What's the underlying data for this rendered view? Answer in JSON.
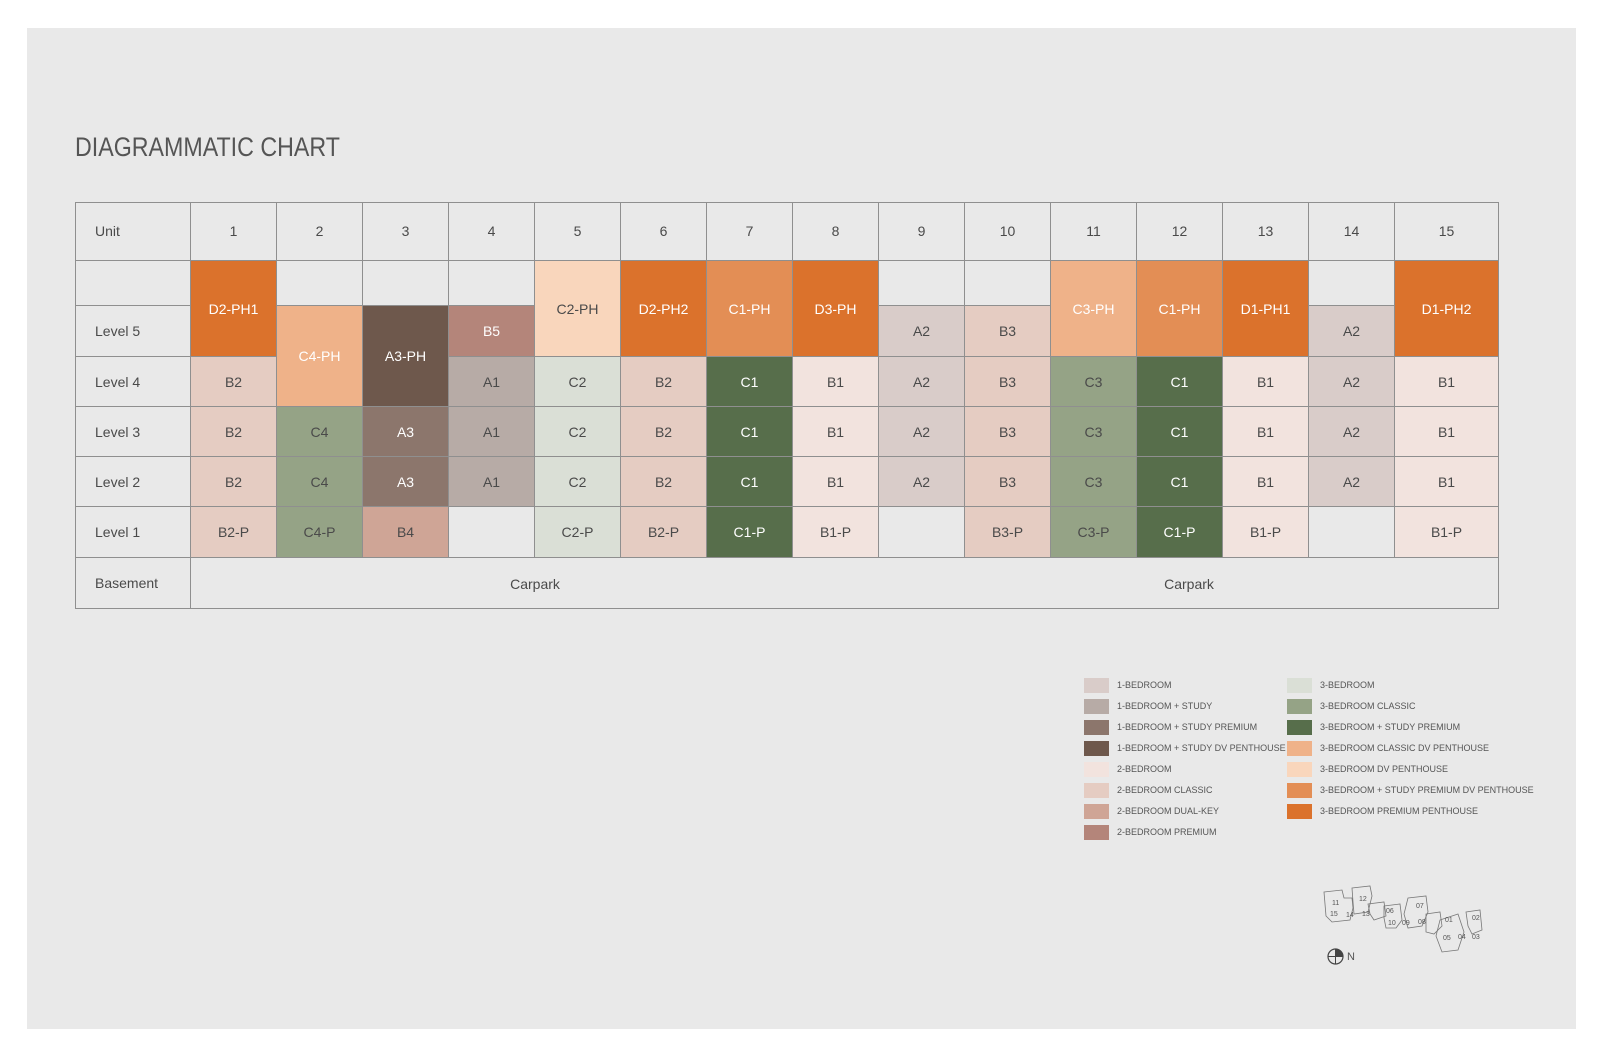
{
  "title": "DIAGRAMMATIC CHART",
  "colors": {
    "1-bedroom": "#d9ccc9",
    "1-bedroom-study": "#b7aba6",
    "1-bedroom-study-premium": "#8c766c",
    "1-bedroom-study-dv-penthouse": "#6e584c",
    "2-bedroom": "#f2e3de",
    "2-bedroom-classic": "#e5ccc2",
    "2-bedroom-dual-key": "#cfa596",
    "2-bedroom-premium": "#b4857a",
    "3-bedroom": "#dadfd6",
    "3-bedroom-classic": "#95a386",
    "3-bedroom-study-premium": "#576e4b",
    "3-bedroom-classic-dv-penthouse": "#efb289",
    "3-bedroom-dv-penthouse": "#f9d6bc",
    "3-bedroom-study-premium-dv-penthouse": "#e38e55",
    "3-bedroom-premium-penthouse": "#db722c",
    "empty": "#e9e9e9"
  },
  "table": {
    "unit_label": "Unit",
    "units": [
      "1",
      "2",
      "3",
      "4",
      "5",
      "6",
      "7",
      "8",
      "9",
      "10",
      "11",
      "12",
      "13",
      "14",
      "15"
    ],
    "row_labels": [
      "",
      "Level 5",
      "Level 4",
      "Level 3",
      "Level 2",
      "Level 1"
    ],
    "basement_label": "Basement",
    "carpark_labels": [
      "Carpark",
      "Carpark"
    ],
    "columns": [
      {
        "cells": [
          {
            "t": "D2-PH1",
            "c": "3-bedroom-premium-penthouse",
            "span": [
              0,
              1
            ],
            "light": true
          },
          {
            "t": "B2",
            "c": "2-bedroom-classic",
            "span": [
              2,
              2
            ]
          },
          {
            "t": "B2",
            "c": "2-bedroom-classic",
            "span": [
              3,
              3
            ]
          },
          {
            "t": "B2",
            "c": "2-bedroom-classic",
            "span": [
              4,
              4
            ]
          },
          {
            "t": "B2-P",
            "c": "2-bedroom-classic",
            "span": [
              5,
              5
            ]
          }
        ]
      },
      {
        "cells": [
          {
            "t": "",
            "c": "empty",
            "span": [
              0,
              0
            ]
          },
          {
            "t": "C4-PH",
            "c": "3-bedroom-classic-dv-penthouse",
            "span": [
              1,
              2
            ],
            "light": true
          },
          {
            "t": "C4",
            "c": "3-bedroom-classic",
            "span": [
              3,
              3
            ]
          },
          {
            "t": "C4",
            "c": "3-bedroom-classic",
            "span": [
              4,
              4
            ]
          },
          {
            "t": "C4-P",
            "c": "3-bedroom-classic",
            "span": [
              5,
              5
            ]
          }
        ]
      },
      {
        "cells": [
          {
            "t": "",
            "c": "empty",
            "span": [
              0,
              0
            ]
          },
          {
            "t": "A3-PH",
            "c": "1-bedroom-study-dv-penthouse",
            "span": [
              1,
              2
            ],
            "light": true
          },
          {
            "t": "A3",
            "c": "1-bedroom-study-premium",
            "span": [
              3,
              3
            ],
            "light": true
          },
          {
            "t": "A3",
            "c": "1-bedroom-study-premium",
            "span": [
              4,
              4
            ],
            "light": true
          },
          {
            "t": "B4",
            "c": "2-bedroom-dual-key",
            "span": [
              5,
              5
            ]
          }
        ]
      },
      {
        "cells": [
          {
            "t": "",
            "c": "empty",
            "span": [
              0,
              0
            ]
          },
          {
            "t": "B5",
            "c": "2-bedroom-premium",
            "span": [
              1,
              1
            ],
            "light": true
          },
          {
            "t": "A1",
            "c": "1-bedroom-study",
            "span": [
              2,
              2
            ]
          },
          {
            "t": "A1",
            "c": "1-bedroom-study",
            "span": [
              3,
              3
            ]
          },
          {
            "t": "A1",
            "c": "1-bedroom-study",
            "span": [
              4,
              4
            ]
          },
          {
            "t": "",
            "c": "empty",
            "span": [
              5,
              5
            ]
          }
        ]
      },
      {
        "cells": [
          {
            "t": "C2-PH",
            "c": "3-bedroom-dv-penthouse",
            "span": [
              0,
              1
            ]
          },
          {
            "t": "C2",
            "c": "3-bedroom",
            "span": [
              2,
              2
            ]
          },
          {
            "t": "C2",
            "c": "3-bedroom",
            "span": [
              3,
              3
            ]
          },
          {
            "t": "C2",
            "c": "3-bedroom",
            "span": [
              4,
              4
            ]
          },
          {
            "t": "C2-P",
            "c": "3-bedroom",
            "span": [
              5,
              5
            ]
          }
        ]
      },
      {
        "cells": [
          {
            "t": "D2-PH2",
            "c": "3-bedroom-premium-penthouse",
            "span": [
              0,
              1
            ],
            "light": true
          },
          {
            "t": "B2",
            "c": "2-bedroom-classic",
            "span": [
              2,
              2
            ]
          },
          {
            "t": "B2",
            "c": "2-bedroom-classic",
            "span": [
              3,
              3
            ]
          },
          {
            "t": "B2",
            "c": "2-bedroom-classic",
            "span": [
              4,
              4
            ]
          },
          {
            "t": "B2-P",
            "c": "2-bedroom-classic",
            "span": [
              5,
              5
            ]
          }
        ]
      },
      {
        "cells": [
          {
            "t": "C1-PH",
            "c": "3-bedroom-study-premium-dv-penthouse",
            "span": [
              0,
              1
            ],
            "light": true
          },
          {
            "t": "C1",
            "c": "3-bedroom-study-premium",
            "span": [
              2,
              2
            ],
            "light": true
          },
          {
            "t": "C1",
            "c": "3-bedroom-study-premium",
            "span": [
              3,
              3
            ],
            "light": true
          },
          {
            "t": "C1",
            "c": "3-bedroom-study-premium",
            "span": [
              4,
              4
            ],
            "light": true
          },
          {
            "t": "C1-P",
            "c": "3-bedroom-study-premium",
            "span": [
              5,
              5
            ],
            "light": true
          }
        ]
      },
      {
        "cells": [
          {
            "t": "D3-PH",
            "c": "3-bedroom-premium-penthouse",
            "span": [
              0,
              1
            ],
            "light": true
          },
          {
            "t": "B1",
            "c": "2-bedroom",
            "span": [
              2,
              2
            ]
          },
          {
            "t": "B1",
            "c": "2-bedroom",
            "span": [
              3,
              3
            ]
          },
          {
            "t": "B1",
            "c": "2-bedroom",
            "span": [
              4,
              4
            ]
          },
          {
            "t": "B1-P",
            "c": "2-bedroom",
            "span": [
              5,
              5
            ]
          }
        ]
      },
      {
        "cells": [
          {
            "t": "",
            "c": "empty",
            "span": [
              0,
              0
            ]
          },
          {
            "t": "A2",
            "c": "1-bedroom",
            "span": [
              1,
              1
            ]
          },
          {
            "t": "A2",
            "c": "1-bedroom",
            "span": [
              2,
              2
            ]
          },
          {
            "t": "A2",
            "c": "1-bedroom",
            "span": [
              3,
              3
            ]
          },
          {
            "t": "A2",
            "c": "1-bedroom",
            "span": [
              4,
              4
            ]
          },
          {
            "t": "",
            "c": "empty",
            "span": [
              5,
              5
            ]
          }
        ]
      },
      {
        "cells": [
          {
            "t": "",
            "c": "empty",
            "span": [
              0,
              0
            ]
          },
          {
            "t": "B3",
            "c": "2-bedroom-classic",
            "span": [
              1,
              1
            ]
          },
          {
            "t": "B3",
            "c": "2-bedroom-classic",
            "span": [
              2,
              2
            ]
          },
          {
            "t": "B3",
            "c": "2-bedroom-classic",
            "span": [
              3,
              3
            ]
          },
          {
            "t": "B3",
            "c": "2-bedroom-classic",
            "span": [
              4,
              4
            ]
          },
          {
            "t": "B3-P",
            "c": "2-bedroom-classic",
            "span": [
              5,
              5
            ]
          }
        ]
      },
      {
        "cells": [
          {
            "t": "C3-PH",
            "c": "3-bedroom-classic-dv-penthouse",
            "span": [
              0,
              1
            ],
            "light": true
          },
          {
            "t": "C3",
            "c": "3-bedroom-classic",
            "span": [
              2,
              2
            ]
          },
          {
            "t": "C3",
            "c": "3-bedroom-classic",
            "span": [
              3,
              3
            ]
          },
          {
            "t": "C3",
            "c": "3-bedroom-classic",
            "span": [
              4,
              4
            ]
          },
          {
            "t": "C3-P",
            "c": "3-bedroom-classic",
            "span": [
              5,
              5
            ]
          }
        ]
      },
      {
        "cells": [
          {
            "t": "C1-PH",
            "c": "3-bedroom-study-premium-dv-penthouse",
            "span": [
              0,
              1
            ],
            "light": true
          },
          {
            "t": "C1",
            "c": "3-bedroom-study-premium",
            "span": [
              2,
              2
            ],
            "light": true
          },
          {
            "t": "C1",
            "c": "3-bedroom-study-premium",
            "span": [
              3,
              3
            ],
            "light": true
          },
          {
            "t": "C1",
            "c": "3-bedroom-study-premium",
            "span": [
              4,
              4
            ],
            "light": true
          },
          {
            "t": "C1-P",
            "c": "3-bedroom-study-premium",
            "span": [
              5,
              5
            ],
            "light": true
          }
        ]
      },
      {
        "cells": [
          {
            "t": "D1-PH1",
            "c": "3-bedroom-premium-penthouse",
            "span": [
              0,
              1
            ],
            "light": true
          },
          {
            "t": "B1",
            "c": "2-bedroom",
            "span": [
              2,
              2
            ]
          },
          {
            "t": "B1",
            "c": "2-bedroom",
            "span": [
              3,
              3
            ]
          },
          {
            "t": "B1",
            "c": "2-bedroom",
            "span": [
              4,
              4
            ]
          },
          {
            "t": "B1-P",
            "c": "2-bedroom",
            "span": [
              5,
              5
            ]
          }
        ]
      },
      {
        "cells": [
          {
            "t": "",
            "c": "empty",
            "span": [
              0,
              0
            ]
          },
          {
            "t": "A2",
            "c": "1-bedroom",
            "span": [
              1,
              1
            ]
          },
          {
            "t": "A2",
            "c": "1-bedroom",
            "span": [
              2,
              2
            ]
          },
          {
            "t": "A2",
            "c": "1-bedroom",
            "span": [
              3,
              3
            ]
          },
          {
            "t": "A2",
            "c": "1-bedroom",
            "span": [
              4,
              4
            ]
          },
          {
            "t": "",
            "c": "empty",
            "span": [
              5,
              5
            ]
          }
        ]
      },
      {
        "cells": [
          {
            "t": "D1-PH2",
            "c": "3-bedroom-premium-penthouse",
            "span": [
              0,
              1
            ],
            "light": true
          },
          {
            "t": "B1",
            "c": "2-bedroom",
            "span": [
              2,
              2
            ]
          },
          {
            "t": "B1",
            "c": "2-bedroom",
            "span": [
              3,
              3
            ]
          },
          {
            "t": "B1",
            "c": "2-bedroom",
            "span": [
              4,
              4
            ]
          },
          {
            "t": "B1-P",
            "c": "2-bedroom",
            "span": [
              5,
              5
            ]
          }
        ]
      }
    ]
  },
  "legend": [
    {
      "label": "1-BEDROOM",
      "c": "1-bedroom"
    },
    {
      "label": "1-BEDROOM + STUDY",
      "c": "1-bedroom-study"
    },
    {
      "label": "1-BEDROOM + STUDY PREMIUM",
      "c": "1-bedroom-study-premium"
    },
    {
      "label": "1-BEDROOM + STUDY DV PENTHOUSE",
      "c": "1-bedroom-study-dv-penthouse"
    },
    {
      "label": "2-BEDROOM",
      "c": "2-bedroom"
    },
    {
      "label": "2-BEDROOM CLASSIC",
      "c": "2-bedroom-classic"
    },
    {
      "label": "2-BEDROOM DUAL-KEY",
      "c": "2-bedroom-dual-key"
    },
    {
      "label": "2-BEDROOM PREMIUM",
      "c": "2-bedroom-premium"
    },
    {
      "label": "3-BEDROOM",
      "c": "3-bedroom"
    },
    {
      "label": "3-BEDROOM CLASSIC",
      "c": "3-bedroom-classic"
    },
    {
      "label": "3-BEDROOM + STUDY PREMIUM",
      "c": "3-bedroom-study-premium"
    },
    {
      "label": "3-BEDROOM CLASSIC DV PENTHOUSE",
      "c": "3-bedroom-classic-dv-penthouse"
    },
    {
      "label": "3-BEDROOM DV PENTHOUSE",
      "c": "3-bedroom-dv-penthouse"
    },
    {
      "label": "3-BEDROOM + STUDY PREMIUM DV PENTHOUSE",
      "c": "3-bedroom-study-premium-dv-penthouse"
    },
    {
      "label": "3-BEDROOM PREMIUM PENTHOUSE",
      "c": "3-bedroom-premium-penthouse"
    }
  ],
  "site_plan": {
    "units": [
      "11",
      "12",
      "15",
      "14",
      "13",
      "06",
      "07",
      "10",
      "09",
      "08",
      "01",
      "02",
      "05",
      "04",
      "03"
    ],
    "north_label": "N"
  }
}
